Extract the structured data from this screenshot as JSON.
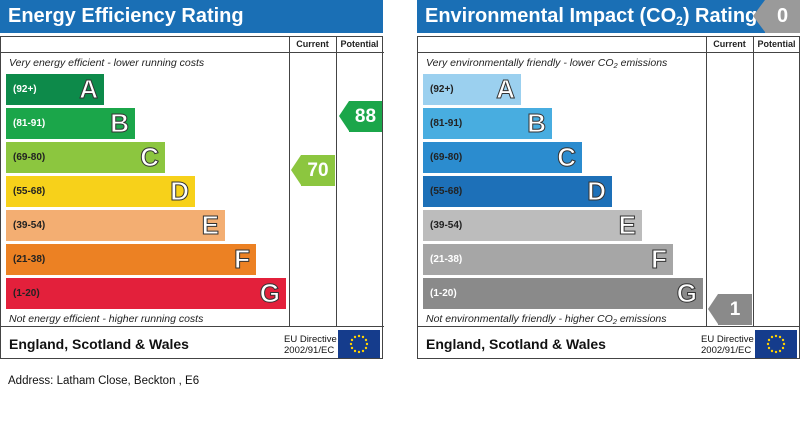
{
  "energy": {
    "title": "Energy Efficiency Rating",
    "col_current": "Current",
    "col_potential": "Potential",
    "note_top": "Very energy efficient - lower running costs",
    "note_bottom": "Not energy efficient - higher running costs",
    "bands": [
      {
        "range": "(92+)",
        "letter": "A",
        "color": "#0d8a4a",
        "text_color": "#ffffff"
      },
      {
        "range": "(81-91)",
        "letter": "B",
        "color": "#1ba64a",
        "text_color": "#ffffff"
      },
      {
        "range": "(69-80)",
        "letter": "C",
        "color": "#8cc63f",
        "text_color": "#222222"
      },
      {
        "range": "(55-68)",
        "letter": "D",
        "color": "#f7d11a",
        "text_color": "#222222"
      },
      {
        "range": "(39-54)",
        "letter": "E",
        "color": "#f3ae72",
        "text_color": "#222222"
      },
      {
        "range": "(21-38)",
        "letter": "F",
        "color": "#ec8123",
        "text_color": "#222222"
      },
      {
        "range": "(1-20)",
        "letter": "G",
        "color": "#e3203b",
        "text_color": "#222222"
      }
    ],
    "current": {
      "value": "70",
      "color": "#8cc63f"
    },
    "potential": {
      "value": "88",
      "color": "#1ba64a"
    },
    "footer": "England, Scotland & Wales",
    "eu_line1": "EU Directive",
    "eu_line2": "2002/91/EC"
  },
  "environment": {
    "title_main": "Environmental Impact (CO",
    "title_sub": "2",
    "title_end": ") Rating",
    "badge": "0",
    "badge_color": "#9a9a9a",
    "col_current": "Current",
    "col_potential": "Potential",
    "note_top_main": "Very environmentally friendly - lower CO",
    "note_top_sub": "2",
    "note_top_end": " emissions",
    "note_bottom_main": "Not environmentally friendly - higher CO",
    "note_bottom_sub": "2",
    "note_bottom_end": " emissions",
    "bands": [
      {
        "range": "(92+)",
        "letter": "A",
        "color": "#9bd0ef",
        "text_color": "#222222"
      },
      {
        "range": "(81-91)",
        "letter": "B",
        "color": "#48ade0",
        "text_color": "#222222"
      },
      {
        "range": "(69-80)",
        "letter": "C",
        "color": "#2b8ccf",
        "text_color": "#222222"
      },
      {
        "range": "(55-68)",
        "letter": "D",
        "color": "#1d70b8",
        "text_color": "#222222"
      },
      {
        "range": "(39-54)",
        "letter": "E",
        "color": "#bcbcbc",
        "text_color": "#222222"
      },
      {
        "range": "(21-38)",
        "letter": "F",
        "color": "#a6a6a6",
        "text_color": "#ffffff"
      },
      {
        "range": "(1-20)",
        "letter": "G",
        "color": "#8a8a8a",
        "text_color": "#ffffff"
      }
    ],
    "current": {
      "value": "1",
      "color": "#8a8a8a"
    },
    "footer": "England, Scotland & Wales",
    "eu_line1": "EU Directive",
    "eu_line2": "2002/91/EC"
  },
  "address": "Address: Latham Close, Beckton , E6"
}
